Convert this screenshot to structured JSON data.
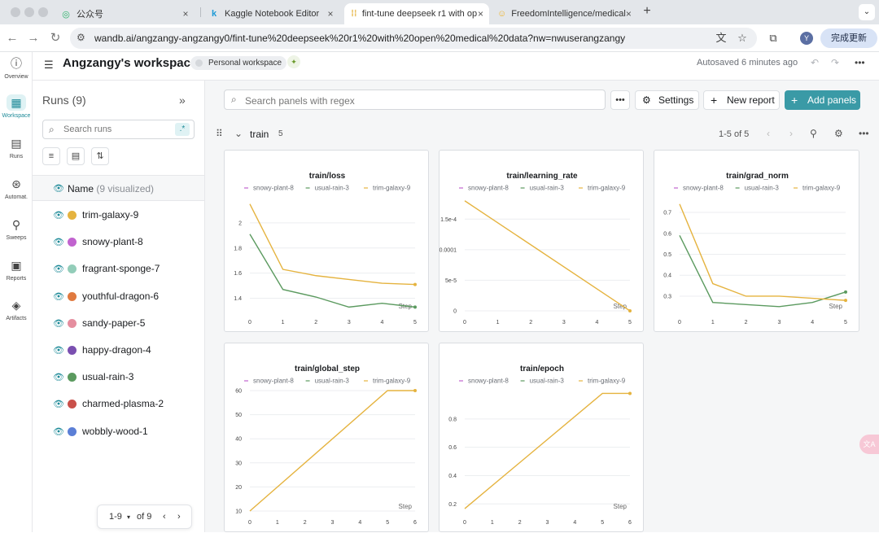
{
  "browser": {
    "tabs": [
      {
        "title": "公众号",
        "icon": "wechat-icon",
        "close": "×"
      },
      {
        "title": "Kaggle Notebook Editor",
        "icon": "kaggle-icon",
        "close": "×"
      },
      {
        "title": "fint-tune deepseek r1 with op",
        "icon": "wandb-icon",
        "close": "×"
      },
      {
        "title": "FreedomIntelligence/medical",
        "icon": "huggingface-icon",
        "close": "×"
      }
    ],
    "new_tab": "+",
    "url": "wandb.ai/angzangy-angzangy0/fint-tune%20deepseek%20r1%20with%20open%20medical%20data?nw=nwuserangzangy",
    "profile_initial": "Y",
    "update_button": "完成更新"
  },
  "rail": [
    {
      "label": "Overview",
      "icon": "info-icon",
      "active": false
    },
    {
      "label": "Workspace",
      "icon": "workspace-icon",
      "active": true
    },
    {
      "label": "Runs",
      "icon": "runs-table-icon",
      "active": false
    },
    {
      "label": "Automat.",
      "icon": "automations-icon",
      "active": false
    },
    {
      "label": "Sweeps",
      "icon": "sweeps-broom-icon",
      "active": false
    },
    {
      "label": "Reports",
      "icon": "reports-icon",
      "active": false
    },
    {
      "label": "Artifacts",
      "icon": "artifacts-layers-icon",
      "active": false
    }
  ],
  "header": {
    "title": "Angzangy's workspace",
    "badge": "Personal workspace",
    "autosaved": "Autosaved 6 minutes ago"
  },
  "runs_panel": {
    "title": "Runs (9)",
    "search_placeholder": "Search runs",
    "regex_label": ".*",
    "name_header": "Name",
    "visualized": "(9 visualized)",
    "runs": [
      {
        "name": "trim-galaxy-9",
        "color": "#e5b33f"
      },
      {
        "name": "snowy-plant-8",
        "color": "#c163cf"
      },
      {
        "name": "fragrant-sponge-7",
        "color": "#93cdb9"
      },
      {
        "name": "youthful-dragon-6",
        "color": "#e07a3f"
      },
      {
        "name": "sandy-paper-5",
        "color": "#e58e9f"
      },
      {
        "name": "happy-dragon-4",
        "color": "#7a4fb0"
      },
      {
        "name": "usual-rain-3",
        "color": "#5b9a5f"
      },
      {
        "name": "charmed-plasma-2",
        "color": "#c9504a"
      },
      {
        "name": "wobbly-wood-1",
        "color": "#5b7fd6"
      }
    ],
    "pager": {
      "range": "1-9",
      "of": "of 9"
    }
  },
  "toolbar": {
    "search_placeholder": "Search panels with regex",
    "more": "•••",
    "settings": "Settings",
    "new_report": "New report",
    "add_panels": "Add panels"
  },
  "section": {
    "name": "train",
    "count": "5",
    "range": "1-5 of 5"
  },
  "chart_data": [
    {
      "type": "line",
      "title": "train/loss",
      "xlabel": "Step",
      "xlim": [
        0,
        5
      ],
      "ylim": [
        1.3,
        2.2
      ],
      "xticks": [
        "0",
        "1",
        "2",
        "3",
        "4",
        "5"
      ],
      "yticks": [
        {
          "v": 1.4,
          "label": "1.4"
        },
        {
          "v": 1.6,
          "label": "1.6"
        },
        {
          "v": 1.8,
          "label": "1.8"
        },
        {
          "v": 2.0,
          "label": "2"
        }
      ],
      "legend": [
        "snowy-plant-8",
        "usual-rain-3",
        "trim-galaxy-9"
      ],
      "series": [
        {
          "name": "usual-rain-3",
          "color": "#5b9a5f",
          "x": [
            0,
            1,
            2,
            3,
            4,
            5
          ],
          "y": [
            1.91,
            1.47,
            1.41,
            1.33,
            1.36,
            1.33
          ]
        },
        {
          "name": "trim-galaxy-9",
          "color": "#e5b33f",
          "x": [
            0,
            1,
            2,
            3,
            4,
            5
          ],
          "y": [
            2.15,
            1.63,
            1.58,
            1.55,
            1.52,
            1.51
          ]
        }
      ]
    },
    {
      "type": "line",
      "title": "train/learning_rate",
      "xlabel": "Step",
      "xlim": [
        0,
        5
      ],
      "ylim": [
        0,
        0.000185
      ],
      "xticks": [
        "0",
        "1",
        "2",
        "3",
        "4",
        "5"
      ],
      "yticks": [
        {
          "v": 0,
          "label": "0"
        },
        {
          "v": 5e-05,
          "label": "5e-5"
        },
        {
          "v": 0.0001,
          "label": "0.0001"
        },
        {
          "v": 0.00015,
          "label": "1.5e-4"
        }
      ],
      "legend": [
        "snowy-plant-8",
        "usual-rain-3",
        "trim-galaxy-9"
      ],
      "series": [
        {
          "name": "trim-galaxy-9",
          "color": "#e5b33f",
          "x": [
            0,
            5
          ],
          "y": [
            0.00018,
            0
          ]
        }
      ]
    },
    {
      "type": "line",
      "title": "train/grad_norm",
      "xlabel": "Step",
      "xlim": [
        0,
        5
      ],
      "ylim": [
        0.23,
        0.77
      ],
      "xticks": [
        "0",
        "1",
        "2",
        "3",
        "4",
        "5"
      ],
      "yticks": [
        {
          "v": 0.3,
          "label": "0.3"
        },
        {
          "v": 0.4,
          "label": "0.4"
        },
        {
          "v": 0.5,
          "label": "0.5"
        },
        {
          "v": 0.6,
          "label": "0.6"
        },
        {
          "v": 0.7,
          "label": "0.7"
        }
      ],
      "legend": [
        "snowy-plant-8",
        "usual-rain-3",
        "trim-galaxy-9"
      ],
      "series": [
        {
          "name": "usual-rain-3",
          "color": "#5b9a5f",
          "x": [
            0,
            1,
            2,
            3,
            4,
            5
          ],
          "y": [
            0.59,
            0.27,
            0.26,
            0.25,
            0.27,
            0.32
          ]
        },
        {
          "name": "trim-galaxy-9",
          "color": "#e5b33f",
          "x": [
            0,
            1,
            2,
            3,
            4,
            5
          ],
          "y": [
            0.74,
            0.36,
            0.3,
            0.3,
            0.29,
            0.28
          ]
        }
      ]
    },
    {
      "type": "line",
      "title": "train/global_step",
      "xlabel": "Step",
      "xlim": [
        0,
        6
      ],
      "ylim": [
        10,
        60
      ],
      "xticks": [
        "0",
        "1",
        "2",
        "3",
        "4",
        "5",
        "6"
      ],
      "yticks": [
        {
          "v": 10,
          "label": "10"
        },
        {
          "v": 20,
          "label": "20"
        },
        {
          "v": 30,
          "label": "30"
        },
        {
          "v": 40,
          "label": "40"
        },
        {
          "v": 50,
          "label": "50"
        },
        {
          "v": 60,
          "label": "60"
        }
      ],
      "legend": [
        "snowy-plant-8",
        "usual-rain-3",
        "trim-galaxy-9"
      ],
      "series": [
        {
          "name": "trim-galaxy-9",
          "color": "#e5b33f",
          "x": [
            0,
            5,
            6
          ],
          "y": [
            10,
            60,
            60
          ]
        }
      ]
    },
    {
      "type": "line",
      "title": "train/epoch",
      "xlabel": "Step",
      "xlim": [
        0,
        6
      ],
      "ylim": [
        0.15,
        1.0
      ],
      "xticks": [
        "0",
        "1",
        "2",
        "3",
        "4",
        "5",
        "6"
      ],
      "yticks": [
        {
          "v": 0.2,
          "label": "0.2"
        },
        {
          "v": 0.4,
          "label": "0.4"
        },
        {
          "v": 0.6,
          "label": "0.6"
        },
        {
          "v": 0.8,
          "label": "0.8"
        }
      ],
      "legend": [
        "snowy-plant-8",
        "usual-rain-3",
        "trim-galaxy-9"
      ],
      "series": [
        {
          "name": "trim-galaxy-9",
          "color": "#e5b33f",
          "x": [
            0,
            5,
            6
          ],
          "y": [
            0.167,
            0.98,
            0.98
          ]
        }
      ]
    }
  ],
  "legend_colors": {
    "snowy-plant-8": "#c163cf",
    "usual-rain-3": "#5b9a5f",
    "trim-galaxy-9": "#e5b33f"
  }
}
